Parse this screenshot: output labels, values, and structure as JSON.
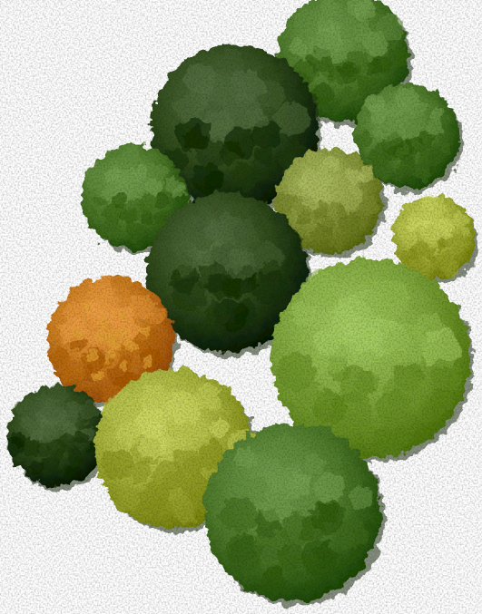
{
  "image": {
    "subject": "tree-cluster-top-down",
    "background_color": "#ffffff"
  },
  "palette": {
    "dark_green": "#2f4a1a",
    "mid_green": "#4e7a2a",
    "light_green": "#7fa63b",
    "olive": "#8a9a3e",
    "yellow_green": "#a6b23a",
    "orange": "#c97a1c",
    "orange_light": "#e3a133",
    "shadow": "#1e2f10"
  },
  "trees": [
    {
      "id": "tree-top-right",
      "tone": "mid_green"
    },
    {
      "id": "tree-upper-center",
      "tone": "dark_green"
    },
    {
      "id": "tree-upper-left",
      "tone": "mid_green"
    },
    {
      "id": "tree-right-upper",
      "tone": "mid_green"
    },
    {
      "id": "tree-olive-center",
      "tone": "olive"
    },
    {
      "id": "tree-yellow-right",
      "tone": "yellow_green"
    },
    {
      "id": "tree-center",
      "tone": "dark_green"
    },
    {
      "id": "tree-large-right",
      "tone": "light_green"
    },
    {
      "id": "tree-orange",
      "tone": "orange"
    },
    {
      "id": "tree-left-small",
      "tone": "dark_green"
    },
    {
      "id": "tree-lower-left",
      "tone": "yellow_green"
    },
    {
      "id": "tree-bottom",
      "tone": "mid_green"
    }
  ]
}
